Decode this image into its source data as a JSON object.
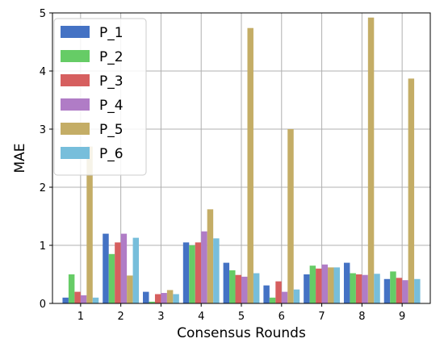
{
  "chart_data": {
    "type": "bar",
    "title": "",
    "xlabel": "Consensus Rounds",
    "ylabel": "MAE",
    "categories": [
      "1",
      "2",
      "3",
      "4",
      "5",
      "6",
      "7",
      "8",
      "9"
    ],
    "ylim": [
      0,
      5
    ],
    "yticks": [
      0,
      1,
      2,
      3,
      4,
      5
    ],
    "grid": true,
    "legend_position": "top-left",
    "series": [
      {
        "name": "P_1",
        "color": "#4472C4",
        "values": [
          0.1,
          1.2,
          0.2,
          1.05,
          0.7,
          0.31,
          0.5,
          0.7,
          0.42
        ]
      },
      {
        "name": "P_2",
        "color": "#66CC66",
        "values": [
          0.5,
          0.85,
          0.03,
          1.0,
          0.57,
          0.1,
          0.65,
          0.52,
          0.55
        ]
      },
      {
        "name": "P_3",
        "color": "#D65F5F",
        "values": [
          0.2,
          1.05,
          0.16,
          1.05,
          0.49,
          0.38,
          0.6,
          0.5,
          0.44
        ]
      },
      {
        "name": "P_4",
        "color": "#B07CC6",
        "values": [
          0.14,
          1.2,
          0.18,
          1.24,
          0.46,
          0.2,
          0.67,
          0.49,
          0.4
        ]
      },
      {
        "name": "P_5",
        "color": "#C4AD66",
        "values": [
          2.7,
          0.48,
          0.23,
          1.62,
          4.74,
          3.0,
          0.62,
          4.92,
          3.87
        ]
      },
      {
        "name": "P_6",
        "color": "#77BEDB",
        "values": [
          0.1,
          1.13,
          0.16,
          1.12,
          0.52,
          0.24,
          0.62,
          0.51,
          0.42
        ]
      }
    ]
  }
}
